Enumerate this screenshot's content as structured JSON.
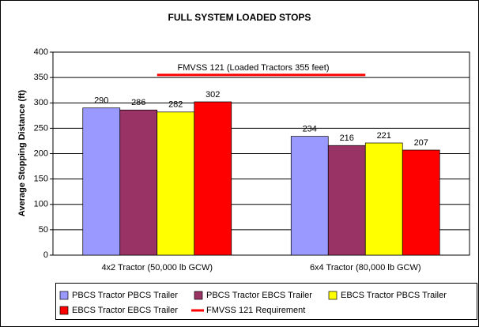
{
  "chart_data": {
    "type": "bar",
    "title": "FULL SYSTEM LOADED STOPS",
    "y_label": "Average Stopping Distance (ft)",
    "categories": [
      "4x2 Tractor (50,000 lb GCW)",
      "6x4 Tractor (80,000 lb GCW)"
    ],
    "series": [
      {
        "name": "PBCS Tractor PBCS Trailer",
        "color": "#9999ff",
        "values": [
          290,
          234
        ]
      },
      {
        "name": "PBCS Tractor EBCS Trailer",
        "color": "#993366",
        "values": [
          286,
          216
        ]
      },
      {
        "name": "EBCS Tractor PBCS Trailer",
        "color": "#ffff00",
        "values": [
          282,
          221
        ]
      },
      {
        "name": "EBCS Tractor EBCS Trailer",
        "color": "#ff0000",
        "values": [
          302,
          207
        ]
      }
    ],
    "reference": {
      "name": "FMVSS 121 Requirement",
      "value": 355,
      "color": "#ff0000",
      "annotation": "FMVSS 121 (Loaded Tractors 355 feet)"
    },
    "ylim": [
      0,
      400
    ],
    "yticks": [
      0,
      50,
      100,
      150,
      200,
      250,
      300,
      350,
      400
    ],
    "grid": true
  }
}
